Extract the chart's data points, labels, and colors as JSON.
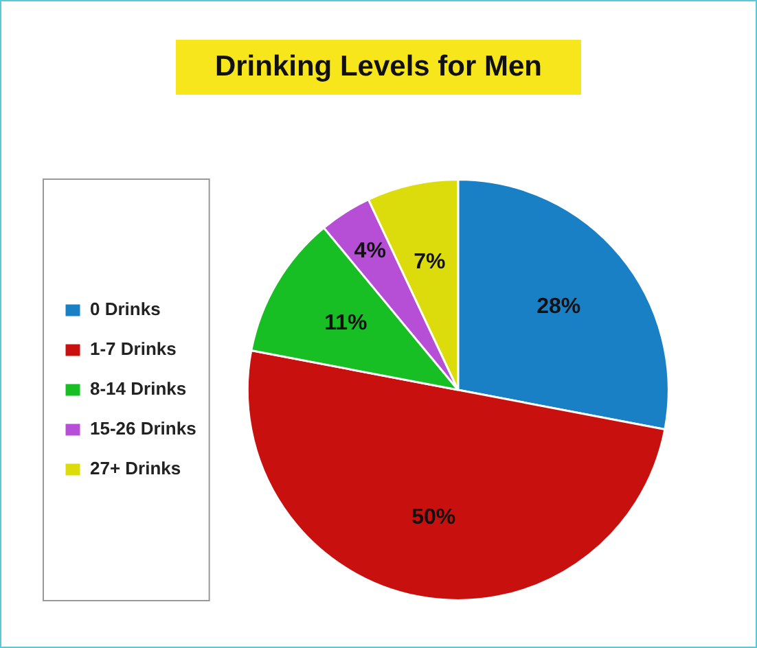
{
  "chart_data": {
    "type": "pie",
    "title": "Drinking Levels for Men",
    "categories": [
      "0 Drinks",
      "1-7 Drinks",
      "8-14 Drinks",
      "15-26 Drinks",
      "27+ Drinks"
    ],
    "values": [
      28,
      50,
      11,
      4,
      7
    ],
    "colors": [
      "#1a80c6",
      "#c8100f",
      "#17bf25",
      "#b64fd6",
      "#dcdc0c"
    ],
    "value_labels": [
      "28%",
      "50%",
      "11%",
      "4%",
      "7%"
    ],
    "legend": "left"
  }
}
